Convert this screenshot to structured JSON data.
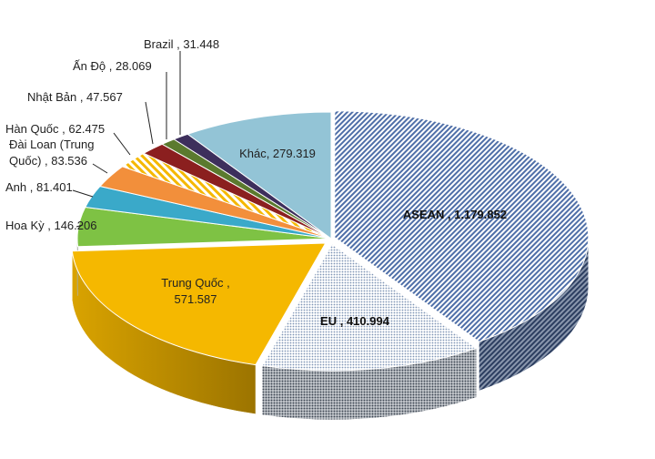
{
  "chart_data": {
    "type": "pie",
    "style": "3d-exploded",
    "legend": "none",
    "slices": [
      {
        "name": "ASEAN",
        "value": 1179.852,
        "label": "ASEAN , 1.179.852",
        "color": "#4f6fa8",
        "pattern": "diag-stripe",
        "bold": true
      },
      {
        "name": "EU",
        "value": 410.994,
        "label": "EU , 410.994",
        "color": "#7f95b5",
        "pattern": "dots",
        "bold": true
      },
      {
        "name": "Trung Quốc",
        "value": 571.587,
        "label_lines": [
          "Trung Quốc ,",
          "571.587"
        ],
        "color": "#f5b800",
        "pattern": "solid",
        "bold": false
      },
      {
        "name": "Hoa Kỳ",
        "value": 146.206,
        "label": "Hoa Kỳ , 146.206",
        "color": "#7ec244",
        "pattern": "solid",
        "bold": false
      },
      {
        "name": "Anh",
        "value": 81.401,
        "label": "Anh , 81.401",
        "color": "#3aa9c9",
        "pattern": "solid",
        "bold": false
      },
      {
        "name": "Đài Loan (Trung Quốc)",
        "value": 83.536,
        "label_lines": [
          "Đài Loan (Trung",
          "Quốc) , 83.536"
        ],
        "color": "#f28f3b",
        "pattern": "solid",
        "bold": false
      },
      {
        "name": "Hàn Quốc",
        "value": 62.475,
        "label": "Hàn Quốc , 62.475",
        "color": "#f5b800",
        "pattern": "hatch",
        "bold": false
      },
      {
        "name": "Nhật Bản",
        "value": 47.567,
        "label": "Nhật Bản , 47.567",
        "color": "#8b1f1f",
        "pattern": "solid",
        "bold": false
      },
      {
        "name": "Ấn Độ",
        "value": 28.069,
        "label": "Ấn Độ , 28.069",
        "color": "#5b7a2e",
        "pattern": "solid",
        "bold": false
      },
      {
        "name": "Brazil",
        "value": 31.448,
        "label": "Brazil , 31.448",
        "color": "#3d2f5c",
        "pattern": "solid",
        "bold": false
      },
      {
        "name": "Khác",
        "value": 279.319,
        "label": "Khác, 279.319",
        "color": "#93c4d6",
        "pattern": "solid",
        "bold": false
      }
    ]
  }
}
